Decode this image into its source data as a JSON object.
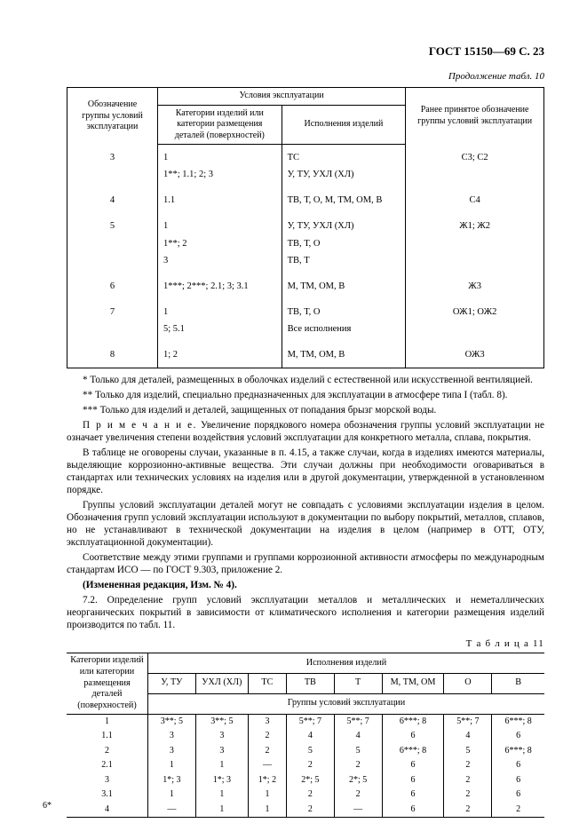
{
  "header": "ГОСТ 15150—69 С. 23",
  "caption10": "Продолжение табл. 10",
  "t10": {
    "head": {
      "c1": "Обозначение группы условий эксплуатации",
      "c2span": "Условия эксплуатации",
      "c2a": "Категории изделий или категории размещения деталей (поверхностей)",
      "c2b": "Исполнения изделий",
      "c3": "Ранее принятое обозначение группы условий эксплуатации"
    },
    "rows": [
      {
        "g": "3",
        "a": "1",
        "b": "ТС",
        "c": "С3; С2"
      },
      {
        "g": "",
        "a": "1**; 1.1; 2; 3",
        "b": "У, ТУ, УХЛ (ХЛ)",
        "c": ""
      },
      {
        "g": "4",
        "a": "1.1",
        "b": "ТВ, Т, О, М, ТМ, ОМ, В",
        "c": "С4"
      },
      {
        "g": "5",
        "a": "1",
        "b": "У, ТУ, УХЛ (ХЛ)",
        "c": "Ж1; Ж2"
      },
      {
        "g": "",
        "a": "1**; 2",
        "b": "ТВ, Т, О",
        "c": ""
      },
      {
        "g": "",
        "a": "3",
        "b": "ТВ, Т",
        "c": ""
      },
      {
        "g": "6",
        "a": "1***; 2***; 2.1; 3; 3.1",
        "b": "М, ТМ, ОМ, В",
        "c": "Ж3"
      },
      {
        "g": "7",
        "a": "1",
        "b": "ТВ, Т, О",
        "c": "ОЖ1; ОЖ2"
      },
      {
        "g": "",
        "a": "5; 5.1",
        "b": "Все исполнения",
        "c": ""
      },
      {
        "g": "8",
        "a": "1; 2",
        "b": "М, ТМ, ОМ, В",
        "c": "ОЖ3"
      }
    ]
  },
  "notes": {
    "n1": "* Только для деталей, размещенных в оболочках изделий с естественной или искусственной вентиляцией.",
    "n2": "** Только для изделий, специально предназначенных для эксплуатации в атмосфере типа I (табл. 8).",
    "n3": "*** Только для изделий и деталей, защищенных от попадания брызг морской воды.",
    "pr_label": "П р и м е ч а н и е.",
    "pr_text": " Увеличение порядкового номера обозначения группы условий эксплуатации не означает увеличения степени воздействия условий эксплуатации для конкретного металла, сплава, покрытия.",
    "p1": "В таблице не оговорены случаи, указанные в п. 4.15, а также случаи, когда в изделиях имеются материалы, выделяющие коррозионно-активные вещества. Эти случаи должны при необходимости оговариваться в стандартах или технических условиях на изделия или в другой документации, утвержденной в установленном порядке.",
    "p2": "Группы условий эксплуатации деталей могут не совпадать с условиями эксплуатации изделия в целом. Обозначения групп условий эксплуатации используют в документации по выбору покрытий, металлов, сплавов, но не устанавливают в технической документации на изделия в целом (например в ОТТ, ОТУ, эксплуатационной документации).",
    "p3": "Соответствие между этими группами и группами коррозионной активности атмосферы по международным стандартам ИСО — по ГОСТ 9.303, приложение 2.",
    "p4": "(Измененная редакция, Изм. № 4).",
    "p5": "7.2. Определение групп условий эксплуатации металлов и металлических и неметаллических неорганических покрытий в зависимости от климатического исполнения и категории размещения изделий производится по табл. 11."
  },
  "caption11": "Т а б л и ц а 11",
  "t11": {
    "head": {
      "left": "Категории изделий или категории размещения деталей (поверхностей)",
      "isp": "Исполнения изделий",
      "cols": [
        "У, ТУ",
        "УХЛ (ХЛ)",
        "ТС",
        "ТВ",
        "Т",
        "М, ТМ, ОМ",
        "О",
        "В"
      ],
      "grp": "Группы условий эксплуатации"
    },
    "rows": [
      [
        "1",
        "3**; 5",
        "3**; 5",
        "3",
        "5**; 7",
        "5**; 7",
        "6***; 8",
        "5**; 7",
        "6***; 8"
      ],
      [
        "1.1",
        "3",
        "3",
        "2",
        "4",
        "4",
        "6",
        "4",
        "6"
      ],
      [
        "2",
        "3",
        "3",
        "2",
        "5",
        "5",
        "6***; 8",
        "5",
        "6***; 8"
      ],
      [
        "2.1",
        "1",
        "1",
        "—",
        "2",
        "2",
        "6",
        "2",
        "6"
      ],
      [
        "3",
        "1*; 3",
        "1*; 3",
        "1*; 2",
        "2*; 5",
        "2*; 5",
        "6",
        "2",
        "6"
      ],
      [
        "3.1",
        "1",
        "1",
        "1",
        "2",
        "2",
        "6",
        "2",
        "6"
      ],
      [
        "4",
        "—",
        "1",
        "1",
        "2",
        "—",
        "6",
        "2",
        "2"
      ]
    ]
  },
  "footer": "6*"
}
